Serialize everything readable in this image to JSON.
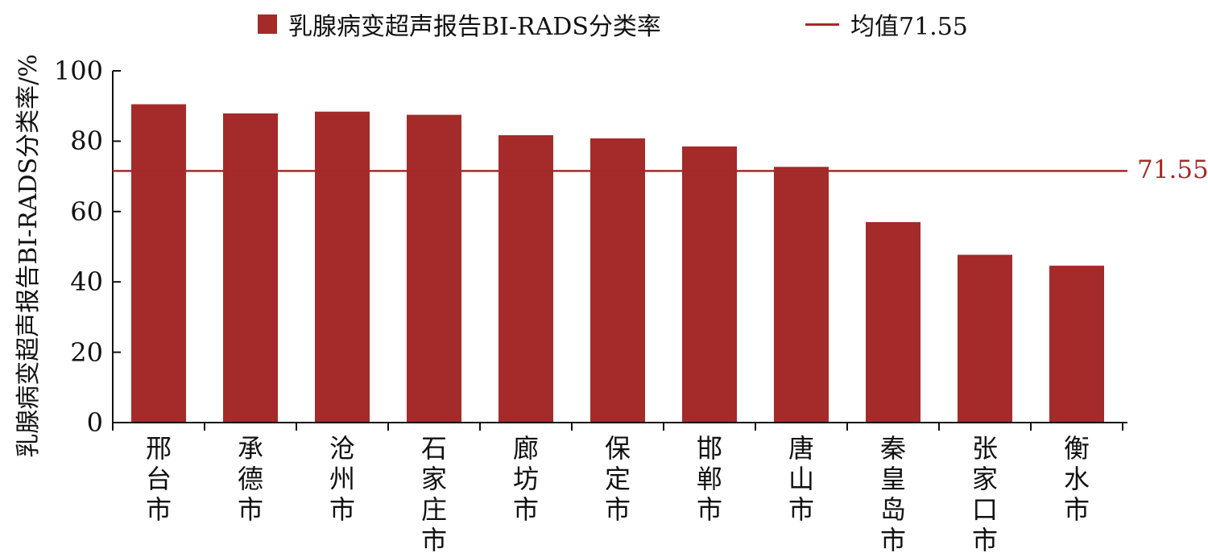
{
  "legend": {
    "bar_label": "乳腺病变超声报告BI-RADS分类率",
    "line_label": "均值71.55"
  },
  "chart_data": {
    "type": "bar",
    "title": "",
    "xlabel": "",
    "ylabel": "乳腺病变超声报告BI-RADS分类率/%",
    "categories": [
      "邢台市",
      "承德市",
      "沧州市",
      "石家庄市",
      "廊坊市",
      "保定市",
      "邯郸市",
      "唐山市",
      "秦皇岛市",
      "张家口市",
      "衡水市"
    ],
    "series": [
      {
        "name": "乳腺病变超声报告BI-RADS分类率",
        "values": [
          90.5,
          87.9,
          88.4,
          87.5,
          81.7,
          80.8,
          78.5,
          72.7,
          57.0,
          47.7,
          44.6
        ],
        "color": "#A52A2A"
      }
    ],
    "reference_line": {
      "name": "均值71.55",
      "value": 71.55,
      "label": "71.55",
      "color": "#A52A2A"
    },
    "ylim": [
      0,
      100
    ],
    "yticks": [
      0,
      20,
      40,
      60,
      80,
      100
    ],
    "grid": false,
    "legend_position": "top"
  }
}
